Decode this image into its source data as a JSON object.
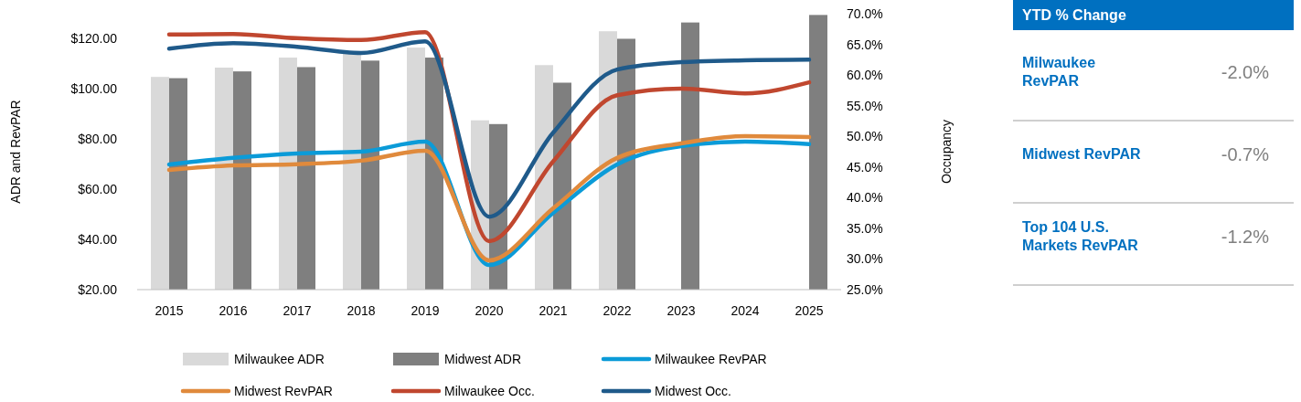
{
  "chart_data": [
    {
      "type": "bar",
      "xlabel": null,
      "ylabel": "ADR and RevPAR",
      "y2label": "Occupancy",
      "categories": [
        "2015",
        "2016",
        "2017",
        "2018",
        "2019",
        "2020",
        "2021",
        "2022",
        "2023",
        "2024",
        "2025"
      ],
      "ylim": [
        20,
        130
      ],
      "yticks": [
        {
          "value": 20,
          "label": "$20.00"
        },
        {
          "value": 40,
          "label": "$40.00"
        },
        {
          "value": 60,
          "label": "$60.00"
        },
        {
          "value": 80,
          "label": "$80.00"
        },
        {
          "value": 100,
          "label": "$100.00"
        },
        {
          "value": 120,
          "label": "$120.00"
        }
      ],
      "y2lim": [
        25,
        70
      ],
      "y2ticks": [
        {
          "value": 25,
          "label": "25.0%"
        },
        {
          "value": 30,
          "label": "30.0%"
        },
        {
          "value": 35,
          "label": "35.0%"
        },
        {
          "value": 40,
          "label": "40.0%"
        },
        {
          "value": 45,
          "label": "45.0%"
        },
        {
          "value": 50,
          "label": "50.0%"
        },
        {
          "value": 55,
          "label": "55.0%"
        },
        {
          "value": 60,
          "label": "60.0%"
        },
        {
          "value": 65,
          "label": "65.0%"
        },
        {
          "value": 70,
          "label": "70.0%"
        }
      ],
      "legend": "bottom",
      "grid": false,
      "series": [
        {
          "name": "Milwaukee ADR",
          "type": "bar",
          "color": "#d9d9d9",
          "values": [
            104.8,
            108.5,
            112.5,
            114,
            116.5,
            87.5,
            109.5,
            123,
            null,
            null,
            null
          ]
        },
        {
          "name": "Midwest ADR",
          "type": "bar",
          "color": "#7f7f7f",
          "values": [
            104.3,
            107,
            108.7,
            111.3,
            112.5,
            86,
            102.5,
            120,
            126.5,
            null,
            129.5
          ]
        },
        {
          "name": "Milwaukee RevPAR",
          "type": "line",
          "color": "#0b9bd8",
          "values": [
            69.9,
            72.5,
            74.3,
            75,
            79,
            29.8,
            50.6,
            69.9,
            77.2,
            79,
            78
          ]
        },
        {
          "name": "Midwest RevPAR",
          "type": "line",
          "color": "#e08a3c",
          "values": [
            67.7,
            69.5,
            70,
            71.4,
            75.4,
            31.7,
            52.4,
            72.5,
            78.3,
            81.2,
            80.8
          ]
        },
        {
          "name": "Milwaukee Occ.",
          "type": "line",
          "axis": "y2",
          "color": "#c0472f",
          "values": [
            66.6,
            66.7,
            66,
            65.7,
            67,
            32.9,
            45.9,
            56.7,
            57.8,
            57,
            58.8
          ]
        },
        {
          "name": "Midwest Occ.",
          "type": "line",
          "axis": "y2",
          "color": "#1f5a8a",
          "values": [
            64.3,
            65.2,
            64.6,
            63.6,
            65.5,
            36.9,
            50.6,
            60.9,
            62.1,
            62.4,
            62.5
          ]
        }
      ]
    },
    {
      "type": "other",
      "title": "YTD % Change",
      "categories": [
        "Milwaukee RevPAR",
        "Midwest RevPAR",
        "Top 104 U.S. Markets RevPAR"
      ],
      "value_labels": [
        "-2.0%",
        "-0.7%",
        "-1.2%"
      ]
    }
  ]
}
